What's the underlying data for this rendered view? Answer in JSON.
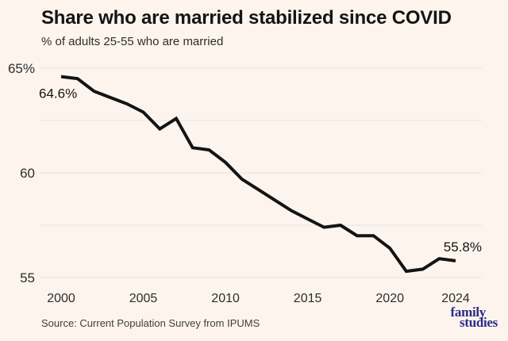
{
  "header": {
    "title": "Share who are married stabilized since COVID",
    "subtitle": "% of adults 25-55 who are married"
  },
  "source": "Source: Current Population Survey from IPUMS",
  "logo": {
    "line1": "family",
    "line2": "studies"
  },
  "colors": {
    "background": "#fdf4ed",
    "title": "#141414",
    "text": "#2d2d2d",
    "line": "#141414",
    "grid": "#e4e3e8",
    "source": "#404040",
    "logo": "#2c2b87"
  },
  "chart_data": {
    "type": "line",
    "title": "Share who are married stabilized since COVID",
    "subtitle": "% of adults 25-55 who are married",
    "x": [
      2000,
      2001,
      2002,
      2003,
      2004,
      2005,
      2006,
      2007,
      2008,
      2009,
      2010,
      2011,
      2012,
      2013,
      2014,
      2015,
      2016,
      2017,
      2018,
      2019,
      2020,
      2021,
      2022,
      2023,
      2024
    ],
    "series": [
      {
        "name": "% of adults 25-55 who are married",
        "values": [
          64.6,
          64.5,
          63.9,
          63.6,
          63.3,
          62.9,
          62.1,
          62.6,
          61.2,
          61.1,
          60.5,
          59.7,
          59.2,
          58.7,
          58.2,
          57.8,
          57.4,
          57.5,
          57.0,
          57.0,
          56.4,
          55.3,
          55.4,
          55.9,
          55.8
        ]
      }
    ],
    "xlim": [
      2000,
      2024
    ],
    "ylim": [
      55,
      65
    ],
    "grid": "horizontal",
    "gridline_values": [
      65,
      62.5,
      60,
      57.5,
      55
    ],
    "yticks": [
      {
        "value": 65,
        "label": "65%"
      },
      {
        "value": 60,
        "label": "60"
      },
      {
        "value": 55,
        "label": "55"
      }
    ],
    "xticks": [
      {
        "value": 2000,
        "label": "2000"
      },
      {
        "value": 2005,
        "label": "2005"
      },
      {
        "value": 2010,
        "label": "2010"
      },
      {
        "value": 2015,
        "label": "2015"
      },
      {
        "value": 2020,
        "label": "2020"
      },
      {
        "value": 2024,
        "label": "2024"
      }
    ],
    "annotations": [
      {
        "x": 2000,
        "y": 64.6,
        "text": "64.6%",
        "position": "below-start"
      },
      {
        "x": 2024,
        "y": 55.8,
        "text": "55.8%",
        "position": "above-end"
      }
    ],
    "legend": "none"
  }
}
